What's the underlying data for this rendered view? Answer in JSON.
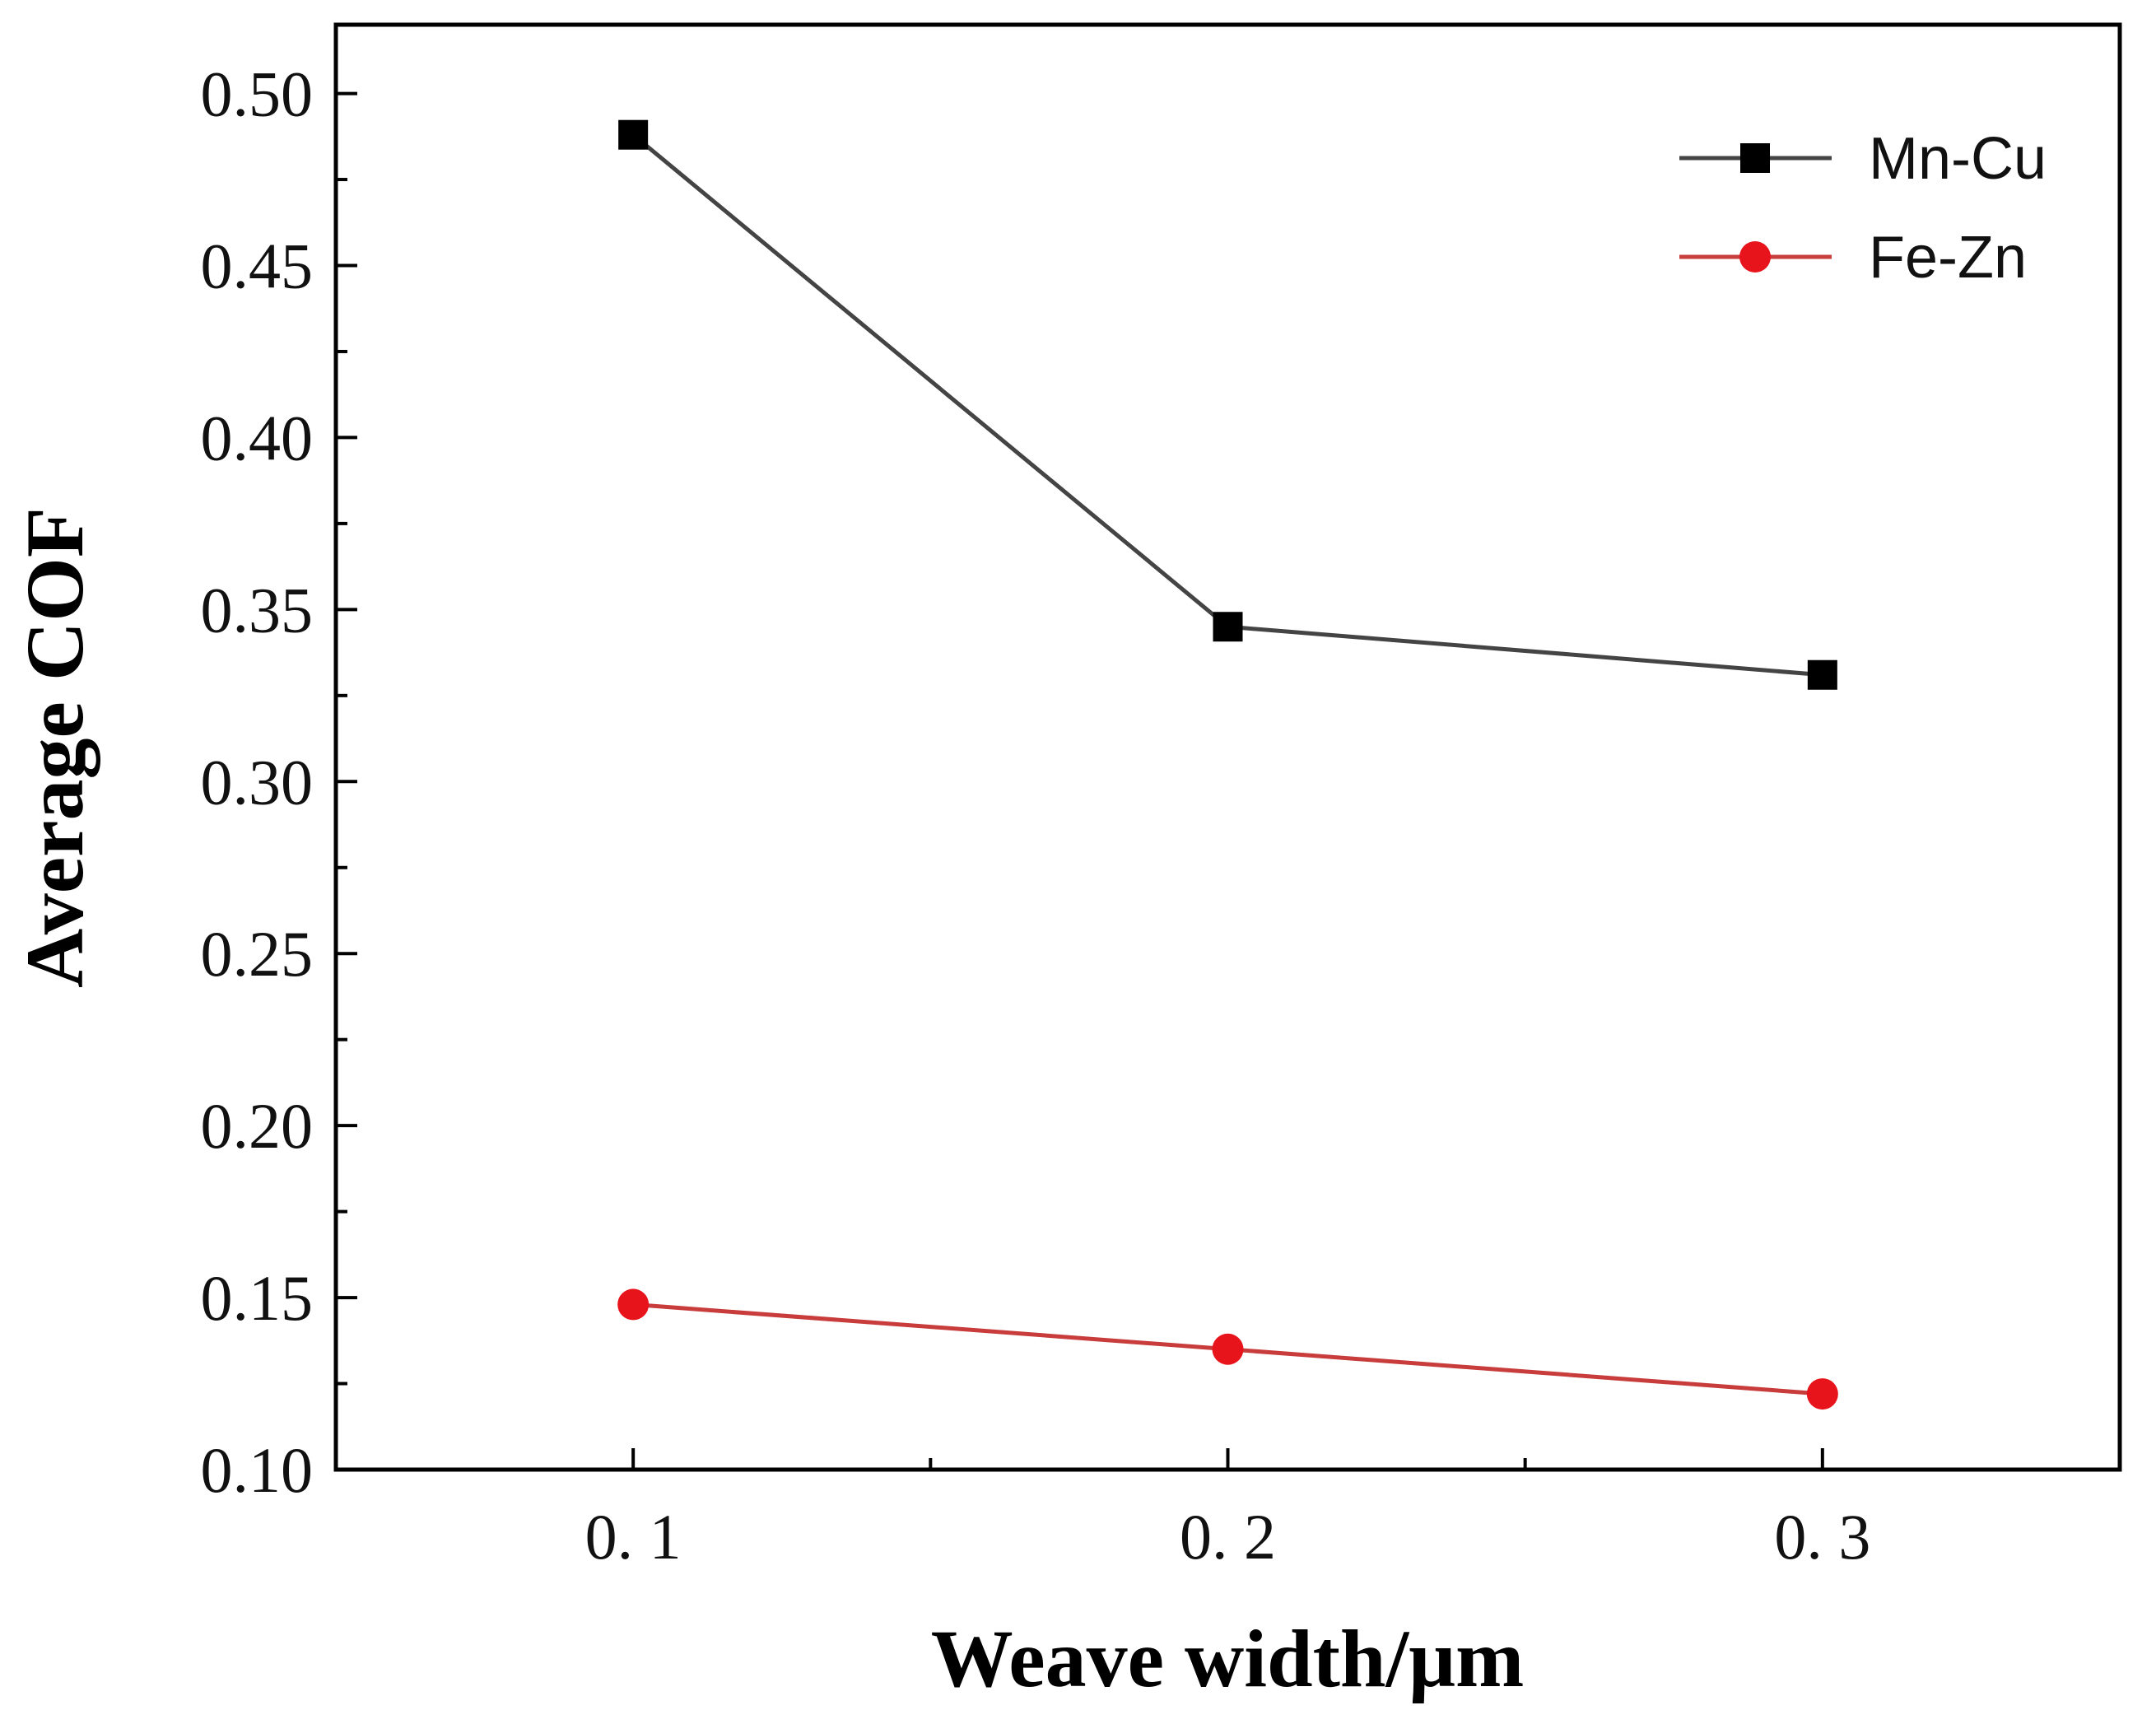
{
  "chart_data": {
    "type": "line",
    "title": "",
    "xlabel": "Weave width/μm",
    "ylabel": "Average COF",
    "x": [
      0.1,
      0.2,
      0.3
    ],
    "x_tick_labels": [
      "0. 1",
      "0. 2",
      "0. 3"
    ],
    "xlim": [
      0.05,
      0.35
    ],
    "ylim": [
      0.1,
      0.52
    ],
    "y_ticks": [
      0.1,
      0.15,
      0.2,
      0.25,
      0.3,
      0.35,
      0.4,
      0.45,
      0.5
    ],
    "y_tick_labels": [
      "0.10",
      "0.15",
      "0.20",
      "0.25",
      "0.30",
      "0.35",
      "0.40",
      "0.45",
      "0.50"
    ],
    "grid": false,
    "legend_position": "top-right",
    "series": [
      {
        "name": "Mn-Cu",
        "values": [
          0.488,
          0.345,
          0.331
        ],
        "color": "#000000",
        "line_color": "#444444",
        "marker": "square"
      },
      {
        "name": "Fe-Zn",
        "values": [
          0.148,
          0.135,
          0.122
        ],
        "color": "#e8141c",
        "line_color": "#c83c3c",
        "marker": "circle"
      }
    ]
  }
}
